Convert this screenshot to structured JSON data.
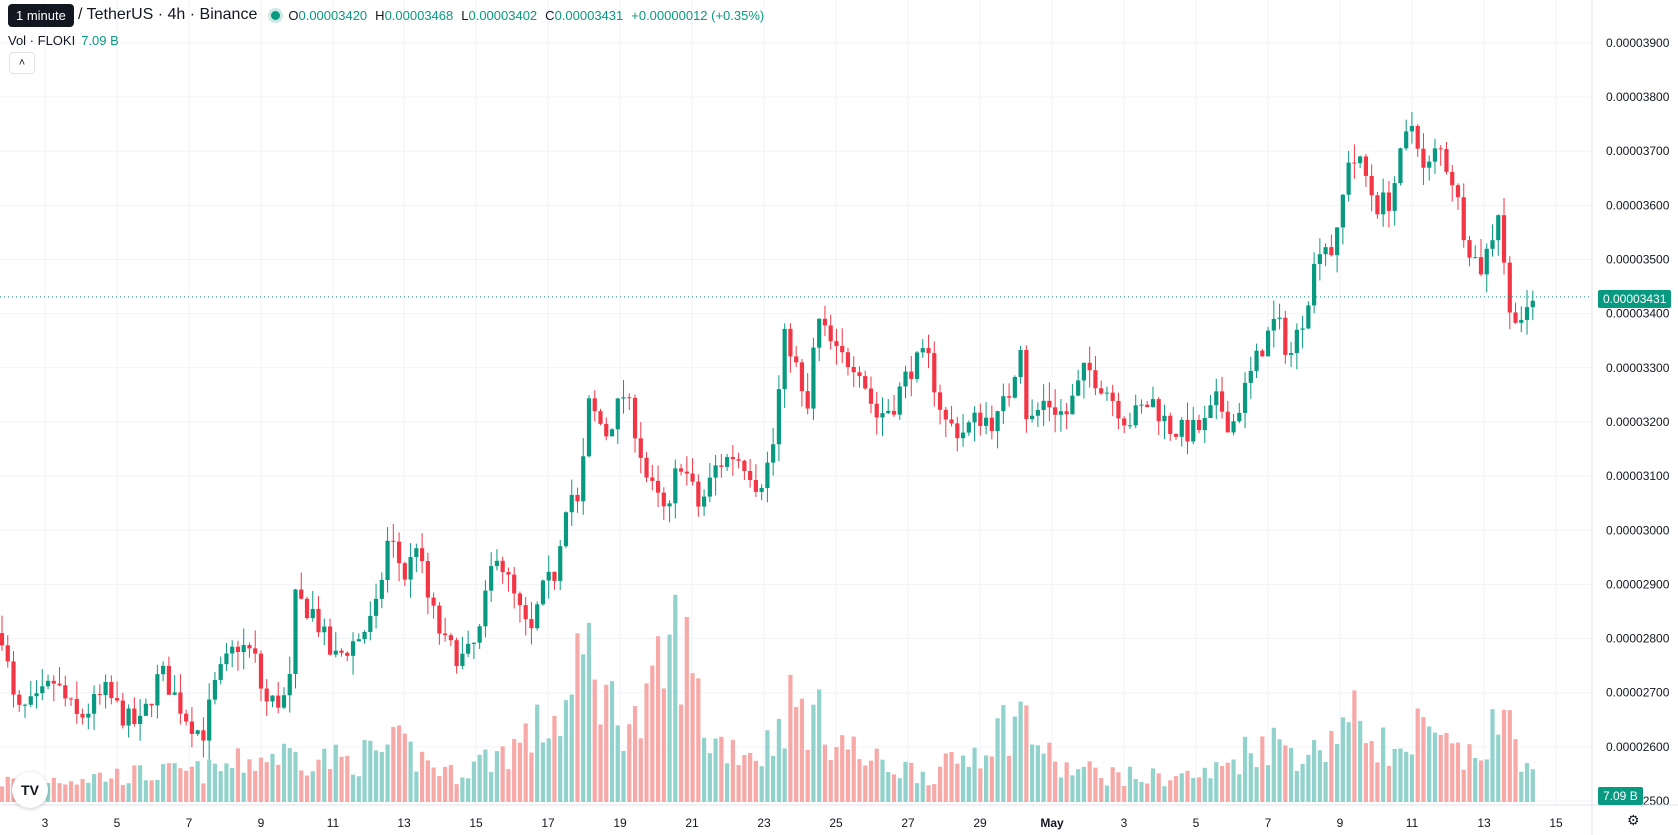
{
  "header": {
    "tooltip": "1 minute",
    "symbol": "/ TetherUS · 4h · Binance",
    "ohlc": [
      {
        "k": "O",
        "v": "0.00003420"
      },
      {
        "k": "H",
        "v": "0.00003468"
      },
      {
        "k": "L",
        "v": "0.00003402"
      },
      {
        "k": "C",
        "v": "0.00003431"
      }
    ],
    "change": "+0.00000012 (+0.35%)"
  },
  "volume_legend": {
    "label": "Vol · FLOKI",
    "value": "7.09 B"
  },
  "collapse_icon": "chevron-up-icon",
  "logo_text": "TV",
  "settings_icon": "gear-icon",
  "colors": {
    "up": "#089981",
    "down": "#f23645",
    "vol_up": "#92d2cc",
    "vol_down": "#f7a9a7",
    "grid": "#f0f3fa",
    "text": "#131722"
  },
  "chart_data": {
    "type": "candlestick",
    "current_price_label": "0.00003431",
    "current_volume_label": "7.09 B",
    "y_ticks": [
      "0.00002500",
      "0.00002600",
      "0.00002700",
      "0.00002800",
      "0.00002900",
      "0.00003000",
      "0.00003100",
      "0.00003200",
      "0.00003300",
      "0.00003400",
      "0.00003500",
      "0.00003600",
      "0.00003700",
      "0.00003800",
      "0.00003900"
    ],
    "x_ticks": [
      "3",
      "5",
      "7",
      "9",
      "11",
      "13",
      "15",
      "17",
      "19",
      "21",
      "23",
      "25",
      "27",
      "29",
      "May",
      "3",
      "5",
      "7",
      "9",
      "11",
      "13",
      "15"
    ],
    "ylim": [
      2.49e-05,
      3.95e-05
    ],
    "current_price": 3.431e-05,
    "close_path": [
      {
        "d": 0.0,
        "c": 2.81e-05
      },
      {
        "d": 0.4,
        "c": 2.66e-05
      },
      {
        "d": 1.0,
        "c": 2.68e-05
      },
      {
        "d": 1.5,
        "c": 2.72e-05
      },
      {
        "d": 2.2,
        "c": 2.65e-05
      },
      {
        "d": 3.0,
        "c": 2.7e-05
      },
      {
        "d": 3.6,
        "c": 2.65e-05
      },
      {
        "d": 4.0,
        "c": 2.64e-05
      },
      {
        "d": 4.6,
        "c": 2.74e-05
      },
      {
        "d": 5.3,
        "c": 2.66e-05
      },
      {
        "d": 5.8,
        "c": 2.62e-05
      },
      {
        "d": 6.2,
        "c": 2.72e-05
      },
      {
        "d": 6.8,
        "c": 2.79e-05
      },
      {
        "d": 7.3,
        "c": 2.77e-05
      },
      {
        "d": 7.6,
        "c": 2.68e-05
      },
      {
        "d": 8.3,
        "c": 2.69e-05
      },
      {
        "d": 8.5,
        "c": 2.87e-05
      },
      {
        "d": 9.0,
        "c": 2.85e-05
      },
      {
        "d": 9.6,
        "c": 2.76e-05
      },
      {
        "d": 10.3,
        "c": 2.8e-05
      },
      {
        "d": 10.8,
        "c": 2.84e-05
      },
      {
        "d": 11.2,
        "c": 2.99e-05
      },
      {
        "d": 11.7,
        "c": 2.91e-05
      },
      {
        "d": 12.0,
        "c": 2.98e-05
      },
      {
        "d": 12.3,
        "c": 2.88e-05
      },
      {
        "d": 12.8,
        "c": 2.79e-05
      },
      {
        "d": 13.4,
        "c": 2.76e-05
      },
      {
        "d": 13.8,
        "c": 2.8e-05
      },
      {
        "d": 14.3,
        "c": 2.97e-05
      },
      {
        "d": 14.8,
        "c": 2.88e-05
      },
      {
        "d": 15.3,
        "c": 2.8e-05
      },
      {
        "d": 15.6,
        "c": 2.88e-05
      },
      {
        "d": 16.0,
        "c": 2.92e-05
      },
      {
        "d": 16.4,
        "c": 3.08e-05
      },
      {
        "d": 16.7,
        "c": 3.04e-05
      },
      {
        "d": 17.0,
        "c": 3.23e-05
      },
      {
        "d": 17.5,
        "c": 3.18e-05
      },
      {
        "d": 18.0,
        "c": 3.25e-05
      },
      {
        "d": 18.3,
        "c": 3.2e-05
      },
      {
        "d": 18.7,
        "c": 3.09e-05
      },
      {
        "d": 19.3,
        "c": 3.02e-05
      },
      {
        "d": 19.6,
        "c": 3.14e-05
      },
      {
        "d": 20.2,
        "c": 3.04e-05
      },
      {
        "d": 20.7,
        "c": 3.12e-05
      },
      {
        "d": 21.2,
        "c": 3.14e-05
      },
      {
        "d": 21.6,
        "c": 3.12e-05
      },
      {
        "d": 21.9,
        "c": 3.08e-05
      },
      {
        "d": 22.3,
        "c": 3.14e-05
      },
      {
        "d": 22.7,
        "c": 3.37e-05
      },
      {
        "d": 23.0,
        "c": 3.3e-05
      },
      {
        "d": 23.3,
        "c": 3.2e-05
      },
      {
        "d": 23.6,
        "c": 3.39e-05
      },
      {
        "d": 24.2,
        "c": 3.32e-05
      },
      {
        "d": 24.8,
        "c": 3.31e-05
      },
      {
        "d": 25.3,
        "c": 3.21e-05
      },
      {
        "d": 25.8,
        "c": 3.23e-05
      },
      {
        "d": 26.3,
        "c": 3.3e-05
      },
      {
        "d": 26.8,
        "c": 3.32e-05
      },
      {
        "d": 27.3,
        "c": 3.2e-05
      },
      {
        "d": 27.8,
        "c": 3.18e-05
      },
      {
        "d": 28.3,
        "c": 3.21e-05
      },
      {
        "d": 28.8,
        "c": 3.2e-05
      },
      {
        "d": 29.2,
        "c": 3.26e-05
      },
      {
        "d": 29.5,
        "c": 3.35e-05
      },
      {
        "d": 29.7,
        "c": 3.19e-05
      },
      {
        "d": 30.2,
        "c": 3.24e-05
      },
      {
        "d": 30.8,
        "c": 3.21e-05
      },
      {
        "d": 31.4,
        "c": 3.3e-05
      },
      {
        "d": 32.0,
        "c": 3.26e-05
      },
      {
        "d": 32.6,
        "c": 3.2e-05
      },
      {
        "d": 33.3,
        "c": 3.24e-05
      },
      {
        "d": 33.8,
        "c": 3.19e-05
      },
      {
        "d": 34.3,
        "c": 3.18e-05
      },
      {
        "d": 34.8,
        "c": 3.19e-05
      },
      {
        "d": 35.2,
        "c": 3.24e-05
      },
      {
        "d": 35.6,
        "c": 3.19e-05
      },
      {
        "d": 36.0,
        "c": 3.26e-05
      },
      {
        "d": 36.5,
        "c": 3.34e-05
      },
      {
        "d": 36.9,
        "c": 3.39e-05
      },
      {
        "d": 37.3,
        "c": 3.32e-05
      },
      {
        "d": 37.7,
        "c": 3.4e-05
      },
      {
        "d": 38.2,
        "c": 3.54e-05
      },
      {
        "d": 38.6,
        "c": 3.51e-05
      },
      {
        "d": 39.0,
        "c": 3.69e-05
      },
      {
        "d": 39.4,
        "c": 3.67e-05
      },
      {
        "d": 39.8,
        "c": 3.6e-05
      },
      {
        "d": 40.2,
        "c": 3.61e-05
      },
      {
        "d": 40.6,
        "c": 3.71e-05
      },
      {
        "d": 40.9,
        "c": 3.76e-05
      },
      {
        "d": 41.2,
        "c": 3.65e-05
      },
      {
        "d": 41.6,
        "c": 3.71e-05
      },
      {
        "d": 42.0,
        "c": 3.65e-05
      },
      {
        "d": 42.4,
        "c": 3.54e-05
      },
      {
        "d": 42.8,
        "c": 3.48e-05
      },
      {
        "d": 43.1,
        "c": 3.53e-05
      },
      {
        "d": 43.4,
        "c": 3.61e-05
      },
      {
        "d": 43.6,
        "c": 3.39e-05
      },
      {
        "d": 43.9,
        "c": 3.41e-05
      },
      {
        "d": 44.1,
        "c": 3.38e-05
      },
      {
        "d": 44.4,
        "c": 3.431e-05
      }
    ],
    "volume_path": [
      {
        "d": 0.0,
        "v": 0.3
      },
      {
        "d": 2.0,
        "v": 0.35
      },
      {
        "d": 4.0,
        "v": 0.4
      },
      {
        "d": 6.0,
        "v": 0.45
      },
      {
        "d": 8.0,
        "v": 0.7
      },
      {
        "d": 10.0,
        "v": 0.6
      },
      {
        "d": 11.5,
        "v": 0.8
      },
      {
        "d": 13.0,
        "v": 0.4
      },
      {
        "d": 14.8,
        "v": 0.8
      },
      {
        "d": 16.3,
        "v": 1.3
      },
      {
        "d": 17.0,
        "v": 2.2
      },
      {
        "d": 17.6,
        "v": 1.4
      },
      {
        "d": 18.5,
        "v": 1.1
      },
      {
        "d": 19.6,
        "v": 2.5
      },
      {
        "d": 20.5,
        "v": 0.9
      },
      {
        "d": 22.0,
        "v": 0.7
      },
      {
        "d": 22.8,
        "v": 1.4
      },
      {
        "d": 23.6,
        "v": 1.2
      },
      {
        "d": 25.0,
        "v": 0.6
      },
      {
        "d": 27.0,
        "v": 0.4
      },
      {
        "d": 28.0,
        "v": 0.7
      },
      {
        "d": 29.5,
        "v": 1.3
      },
      {
        "d": 30.5,
        "v": 0.5
      },
      {
        "d": 33.0,
        "v": 0.35
      },
      {
        "d": 35.0,
        "v": 0.4
      },
      {
        "d": 36.5,
        "v": 0.9
      },
      {
        "d": 38.0,
        "v": 0.7
      },
      {
        "d": 38.7,
        "v": 1.1
      },
      {
        "d": 39.3,
        "v": 1.2
      },
      {
        "d": 40.5,
        "v": 0.6
      },
      {
        "d": 41.0,
        "v": 1.0
      },
      {
        "d": 42.5,
        "v": 0.6
      },
      {
        "d": 43.6,
        "v": 1.2
      },
      {
        "d": 44.4,
        "v": 0.3
      }
    ]
  }
}
